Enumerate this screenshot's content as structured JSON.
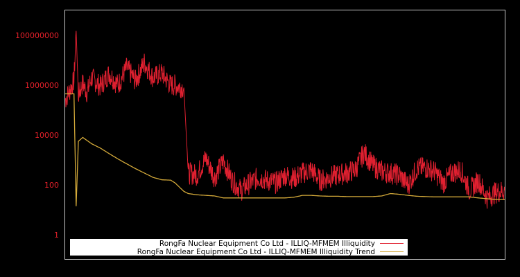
{
  "chart_data": {
    "type": "line",
    "title": "",
    "xlabel": "",
    "ylabel": "",
    "yscale": "log",
    "ylim": [
      0.4,
      1000000000
    ],
    "grid": false,
    "legend_position": "lower center",
    "yticks": [
      {
        "value": 1,
        "label": "1"
      },
      {
        "value": 100,
        "label": "100"
      },
      {
        "value": 10000,
        "label": "10000"
      },
      {
        "value": 1000000,
        "label": "1000000"
      },
      {
        "value": 100000000,
        "label": "100000000"
      }
    ],
    "colors": {
      "background": "#000000",
      "frame": "#c8c8c8",
      "tick_label": "#e8202a",
      "illiquidity": "#e02030",
      "trend": "#d4aa3a",
      "legend_bg": "#ffffff"
    },
    "x": [
      0,
      0.02,
      0.025,
      0.03,
      0.04,
      0.05,
      0.06,
      0.08,
      0.1,
      0.12,
      0.14,
      0.16,
      0.18,
      0.2,
      0.22,
      0.24,
      0.25,
      0.27,
      0.28,
      0.3,
      0.32,
      0.34,
      0.36,
      0.38,
      0.4,
      0.42,
      0.44,
      0.46,
      0.48,
      0.5,
      0.52,
      0.54,
      0.56,
      0.58,
      0.6,
      0.62,
      0.64,
      0.66,
      0.68,
      0.7,
      0.72,
      0.74,
      0.76,
      0.78,
      0.8,
      0.82,
      0.84,
      0.86,
      0.88,
      0.9,
      0.92,
      0.94,
      0.96,
      0.98,
      1.0
    ],
    "series": [
      {
        "name": "RongFa Nuclear Equipment Co Ltd - ILLIQ-MFMEM Illiquidity",
        "color": "#e02030",
        "values": [
          250000,
          1500000,
          150000000,
          400000,
          1200000,
          500000,
          2000000,
          900000,
          3000000,
          1000000,
          5000000,
          1500000,
          8000000,
          2000000,
          3000000,
          1000000,
          1000000,
          800000,
          300,
          250,
          1200,
          200,
          900,
          150,
          60,
          120,
          200,
          150,
          120,
          250,
          180,
          300,
          400,
          150,
          200,
          250,
          300,
          400,
          2000,
          600,
          350,
          300,
          250,
          100,
          450,
          500,
          350,
          120,
          300,
          400,
          60,
          150,
          30,
          50,
          60
        ]
      },
      {
        "name": "RongFa Nuclear Equipment Co Ltd - ILLIQ-MFMEM Illiquidity Trend",
        "color": "#d4aa3a",
        "values": [
          450000,
          450000,
          14,
          5600,
          8000,
          6000,
          4500,
          3000,
          1800,
          1100,
          700,
          450,
          300,
          200,
          160,
          155,
          120,
          55,
          45,
          40,
          38,
          36,
          30,
          30,
          30,
          30,
          30,
          30,
          30,
          30,
          32,
          38,
          38,
          36,
          35,
          35,
          34,
          34,
          34,
          34,
          36,
          45,
          42,
          38,
          35,
          34,
          33,
          33,
          33,
          33,
          33,
          30,
          28,
          26,
          26
        ]
      }
    ]
  },
  "legend": {
    "items": [
      {
        "label": "RongFa Nuclear Equipment Co Ltd - ILLIQ-MFMEM Illiquidity",
        "color": "#e02030"
      },
      {
        "label": "RongFa Nuclear Equipment Co Ltd - ILLIQ-MFMEM Illiquidity Trend",
        "color": "#d4aa3a"
      }
    ]
  }
}
